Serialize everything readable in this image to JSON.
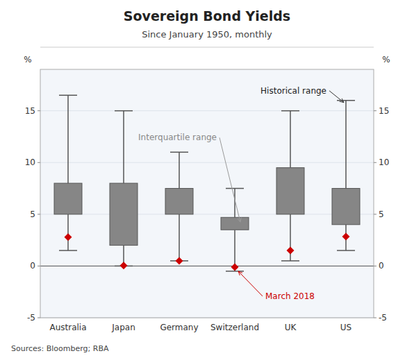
{
  "chart_data": {
    "type": "box",
    "title": "Sovereign Bond Yields",
    "subtitle": "Since January 1950, monthly",
    "source": "Sources: Bloomberg; RBA",
    "ylabel": "%",
    "y2label": "%",
    "categories": [
      "Australia",
      "Japan",
      "Germany",
      "Switzerland",
      "UK",
      "US"
    ],
    "series": [
      {
        "name": "Historical range",
        "color": "#555555",
        "low": [
          1.5,
          0.0,
          0.5,
          -0.5,
          0.5,
          1.5
        ],
        "high": [
          16.5,
          15.0,
          11.0,
          7.5,
          15.0,
          16.0
        ]
      },
      {
        "name": "Interquartile range",
        "color": "#868686",
        "low": [
          5.0,
          2.0,
          5.0,
          3.5,
          5.0,
          4.0
        ],
        "high": [
          8.0,
          8.0,
          7.5,
          4.7,
          9.5,
          7.5
        ]
      },
      {
        "name": "March 2018",
        "color": "#cc0000",
        "marker": "diamond",
        "values": [
          2.8,
          0.05,
          0.5,
          -0.1,
          1.5,
          2.85
        ]
      }
    ],
    "ylim": [
      -5,
      19
    ],
    "yticks": [
      -5,
      0,
      5,
      10,
      15
    ],
    "y2lim": [
      -5,
      19
    ],
    "y2ticks": [
      -5,
      0,
      5,
      10,
      15
    ],
    "grid": true
  }
}
